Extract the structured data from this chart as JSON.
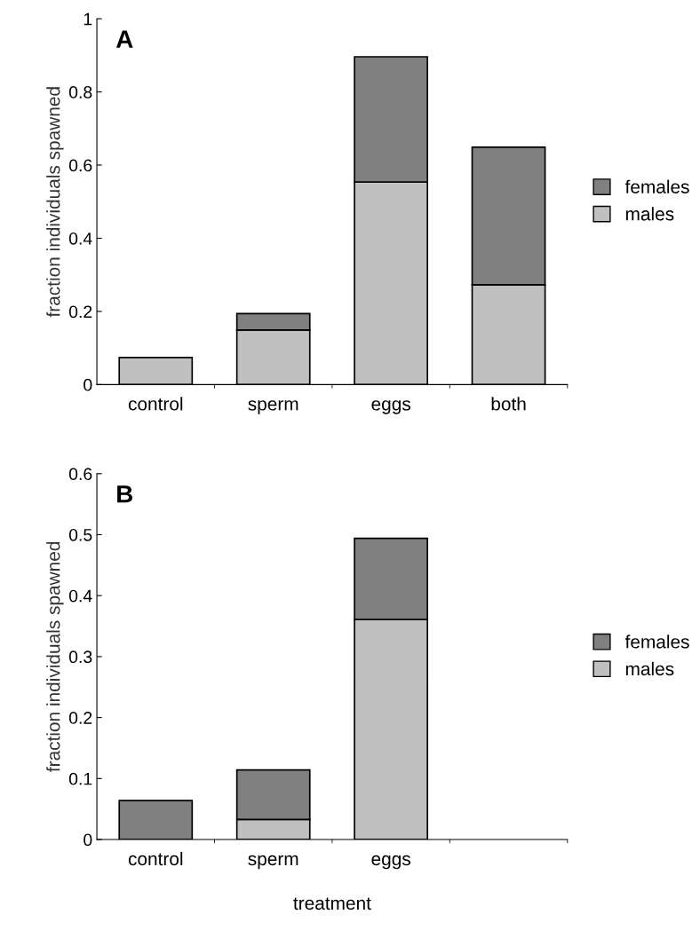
{
  "chart_data": [
    {
      "type": "bar",
      "title": "A",
      "ylabel": "fraction individuals spawned",
      "stacked": true,
      "legend": "right",
      "grid": false,
      "categories": [
        "control",
        "sperm",
        "eggs",
        "both"
      ],
      "ylim": [
        0,
        1
      ],
      "yticks": [
        0,
        0.2,
        0.4,
        0.6,
        0.8,
        1
      ],
      "series": [
        {
          "name": "males",
          "color": "#c0c0c0",
          "values": [
            0.074,
            0.149,
            0.554,
            0.273
          ]
        },
        {
          "name": "females",
          "color": "#808080",
          "values": [
            null,
            0.045,
            0.342,
            0.376
          ]
        }
      ]
    },
    {
      "type": "bar",
      "title": "B",
      "ylabel": "fraction individuals spawned",
      "xlabel": "treatment",
      "stacked": true,
      "legend": "right",
      "grid": false,
      "categories": [
        "control",
        "sperm",
        "eggs",
        null
      ],
      "ylim": [
        0,
        0.6
      ],
      "yticks": [
        0,
        0.1,
        0.2,
        0.3,
        0.4,
        0.5,
        0.6
      ],
      "series": [
        {
          "name": "males",
          "color": "#c0c0c0",
          "values": [
            null,
            0.033,
            0.361,
            null
          ]
        },
        {
          "name": "females",
          "color": "#808080",
          "values": [
            0.064,
            0.081,
            0.133,
            null
          ]
        }
      ]
    }
  ]
}
